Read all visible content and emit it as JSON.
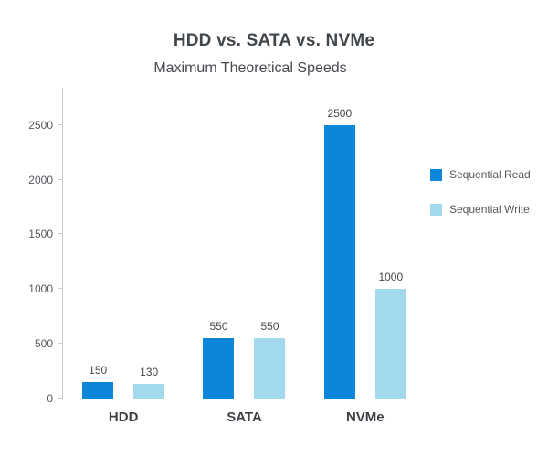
{
  "chart_data": {
    "type": "bar",
    "title": "HDD vs. SATA vs. NVMe",
    "subtitle": "Maximum Theoretical Speeds",
    "categories": [
      "HDD",
      "SATA",
      "NVMe"
    ],
    "series": [
      {
        "name": "Sequential Read",
        "color": "#0b86d8",
        "values": [
          150,
          550,
          2500
        ]
      },
      {
        "name": "Sequential Write",
        "color": "#a3d9ed",
        "values": [
          130,
          550,
          1000
        ]
      }
    ],
    "xlabel": "",
    "ylabel": "",
    "ylim": [
      0,
      2840
    ],
    "yticks": [
      0,
      500,
      1000,
      1500,
      2000,
      2500
    ],
    "grid": false,
    "legend_position": "right",
    "value_labels": true
  }
}
